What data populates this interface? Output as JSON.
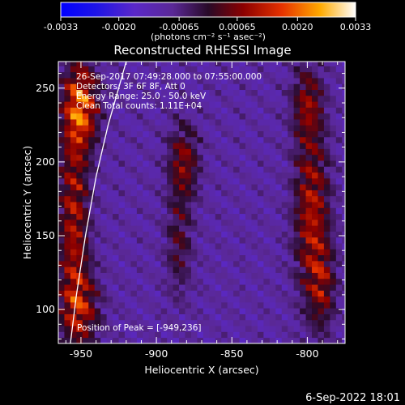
{
  "chart_data": {
    "type": "heatmap",
    "title": "Reconstructed RHESSI Image",
    "xlabel": "Heliocentric X (arcsec)",
    "ylabel": "Heliocentric Y (arcsec)",
    "xlim": [
      -965,
      -775
    ],
    "ylim": [
      77,
      268
    ],
    "xticks": [
      -950,
      -900,
      -850,
      -800
    ],
    "yticks": [
      100,
      150,
      200,
      250
    ],
    "colorbar": {
      "label": "(photons cm⁻² s⁻¹ asec⁻²)",
      "ticks": [
        -0.0033,
        -0.002,
        -0.00065,
        0.00065,
        0.002,
        0.0033
      ],
      "tick_labels": [
        "-0.0033",
        "-0.0020",
        "-0.00065",
        "0.00065",
        "0.0020",
        "0.0033"
      ],
      "range": [
        -0.0033,
        0.0033
      ]
    },
    "annotations": [
      "26-Sep-2017 07:49:28.000 to 07:55:00.000",
      "Detectors: 3F 6F 8F, Att 0",
      "Energy Range: 25.0 - 50.0 keV",
      "Clean   Total counts: 1.11E+04"
    ],
    "peak_label": "Position of Peak = [-949,236]",
    "peak": [
      -949,
      236
    ],
    "limb": [
      [
        -957,
        77
      ],
      [
        -953,
        110
      ],
      [
        -947,
        150
      ],
      [
        -940,
        190
      ],
      [
        -932,
        225
      ],
      [
        -925,
        250
      ],
      [
        -920,
        268
      ]
    ],
    "sources": [
      {
        "x": -950,
        "y": 238,
        "sx": 8,
        "sy": 20,
        "amp": 0.0033
      },
      {
        "x": -955,
        "y": 160,
        "sx": 7,
        "sy": 50,
        "amp": 0.0024
      },
      {
        "x": -950,
        "y": 100,
        "sx": 9,
        "sy": 18,
        "amp": 0.002
      },
      {
        "x": -882,
        "y": 200,
        "sx": 7,
        "sy": 18,
        "amp": 0.002
      },
      {
        "x": -885,
        "y": 145,
        "sx": 6,
        "sy": 25,
        "amp": 0.0013
      },
      {
        "x": -797,
        "y": 165,
        "sx": 8,
        "sy": 40,
        "amp": 0.0025
      },
      {
        "x": -800,
        "y": 240,
        "sx": 7,
        "sy": 18,
        "amp": 0.0018
      },
      {
        "x": -790,
        "y": 115,
        "sx": 6,
        "sy": 20,
        "amp": 0.0016
      }
    ],
    "background": -0.001,
    "grid_cell_arcsec": 4
  },
  "footer_timestamp": "6-Sep-2022 18:01"
}
